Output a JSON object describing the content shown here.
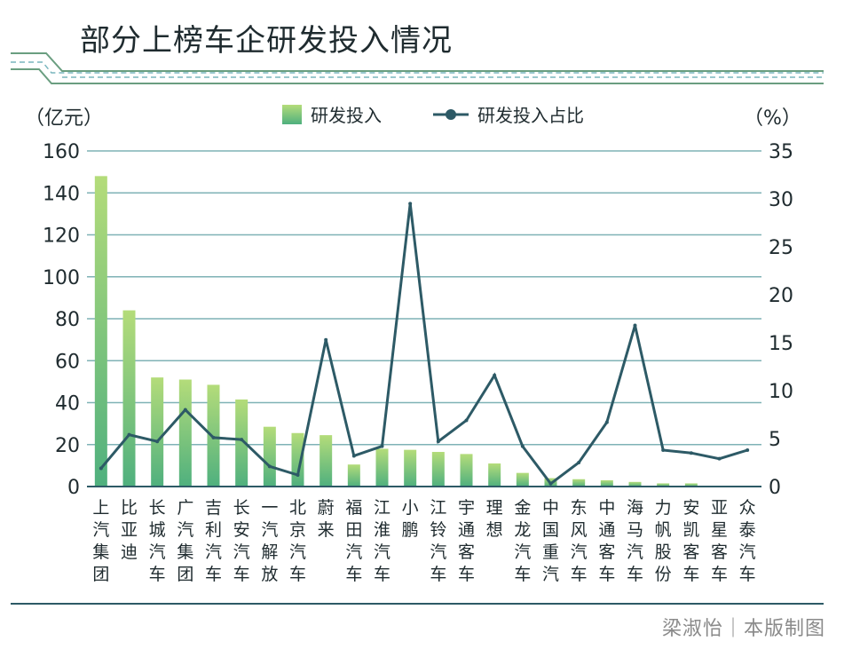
{
  "title": "部分上榜车企研发投入情况",
  "credit": "梁淑怡｜本版制图",
  "chart_data": {
    "type": "bar+line",
    "title": "部分上榜车企研发投入情况",
    "left_unit": "（亿元）",
    "right_unit": "（%）",
    "legend": [
      "研发投入",
      "研发投入占比"
    ],
    "legend_position": "top-center",
    "grid": true,
    "y_left_range": [
      0,
      160
    ],
    "y_right_range": [
      0,
      35
    ],
    "y_left_ticks": [
      "0",
      "20",
      "40",
      "60",
      "80",
      "100",
      "120",
      "140",
      "160"
    ],
    "y_right_ticks": [
      "0",
      "5",
      "10",
      "15",
      "20",
      "25",
      "30",
      "35"
    ],
    "categories": [
      "上汽集团",
      "比亚迪",
      "长城汽车",
      "广汽集团",
      "吉利汽车",
      "长安汽车",
      "一汽解放",
      "北京汽车",
      "蔚来",
      "福田汽车",
      "江淮汽车",
      "小鹏",
      "江铃汽车",
      "宇通客车",
      "理想",
      "金龙汽车",
      "中国重汽",
      "东风汽车",
      "中通客车",
      "海马汽车",
      "力帆股份",
      "安凯客车",
      "亚星客车",
      "众泰汽车"
    ],
    "series": [
      {
        "name": "研发投入",
        "kind": "bar",
        "axis": "left",
        "values": [
          148,
          84,
          52,
          51,
          48.5,
          41.5,
          28.5,
          25.5,
          24.5,
          10.5,
          18,
          17.5,
          16.5,
          15.5,
          11,
          6.5,
          4,
          3.5,
          3,
          2.2,
          1.5,
          1.5,
          0,
          0
        ]
      },
      {
        "name": "研发投入占比",
        "kind": "line",
        "axis": "right",
        "values": [
          1.9,
          5.4,
          4.7,
          8.0,
          5.1,
          4.9,
          2.1,
          1.2,
          15.3,
          3.2,
          4.2,
          29.5,
          4.7,
          6.9,
          11.6,
          4.2,
          0.3,
          2.5,
          6.7,
          16.8,
          3.8,
          3.5,
          2.9,
          3.8
        ]
      }
    ],
    "colors": {
      "bar_top": "#b4dc7a",
      "bar_bottom": "#4fb07e",
      "line": "#2d5a66",
      "grid": "#7fb2b6",
      "deco": "#6a9e80"
    }
  }
}
